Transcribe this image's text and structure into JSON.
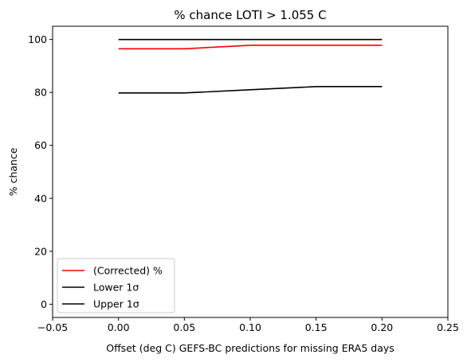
{
  "chart_data": {
    "type": "line",
    "title": "% chance LOTI > 1.055 C",
    "xlabel": "Offset (deg C) GEFS-BC predictions for missing ERA5 days",
    "ylabel": "% chance",
    "xlim": [
      -0.05,
      0.25
    ],
    "ylim": [
      -5,
      105
    ],
    "xticks": [
      "−0.05",
      "0.00",
      "0.05",
      "0.10",
      "0.15",
      "0.20",
      "0.25"
    ],
    "xtick_values": [
      -0.05,
      0.0,
      0.05,
      0.1,
      0.15,
      0.2,
      0.25
    ],
    "yticks": [
      "0",
      "20",
      "40",
      "60",
      "80",
      "100"
    ],
    "ytick_values": [
      0,
      20,
      40,
      60,
      80,
      100
    ],
    "grid": false,
    "legend_position": "lower-left",
    "x": [
      0.0,
      0.05,
      0.1,
      0.15,
      0.2
    ],
    "series": [
      {
        "name": "(Corrected) %",
        "color": "#ff0000",
        "values": [
          96.5,
          96.5,
          97.8,
          97.8,
          97.8
        ]
      },
      {
        "name": "Lower 1σ",
        "color": "#000000",
        "values": [
          79.8,
          79.8,
          81.0,
          82.2,
          82.2
        ]
      },
      {
        "name": "Upper 1σ",
        "color": "#000000",
        "values": [
          100,
          100,
          100,
          100,
          100
        ]
      }
    ]
  }
}
